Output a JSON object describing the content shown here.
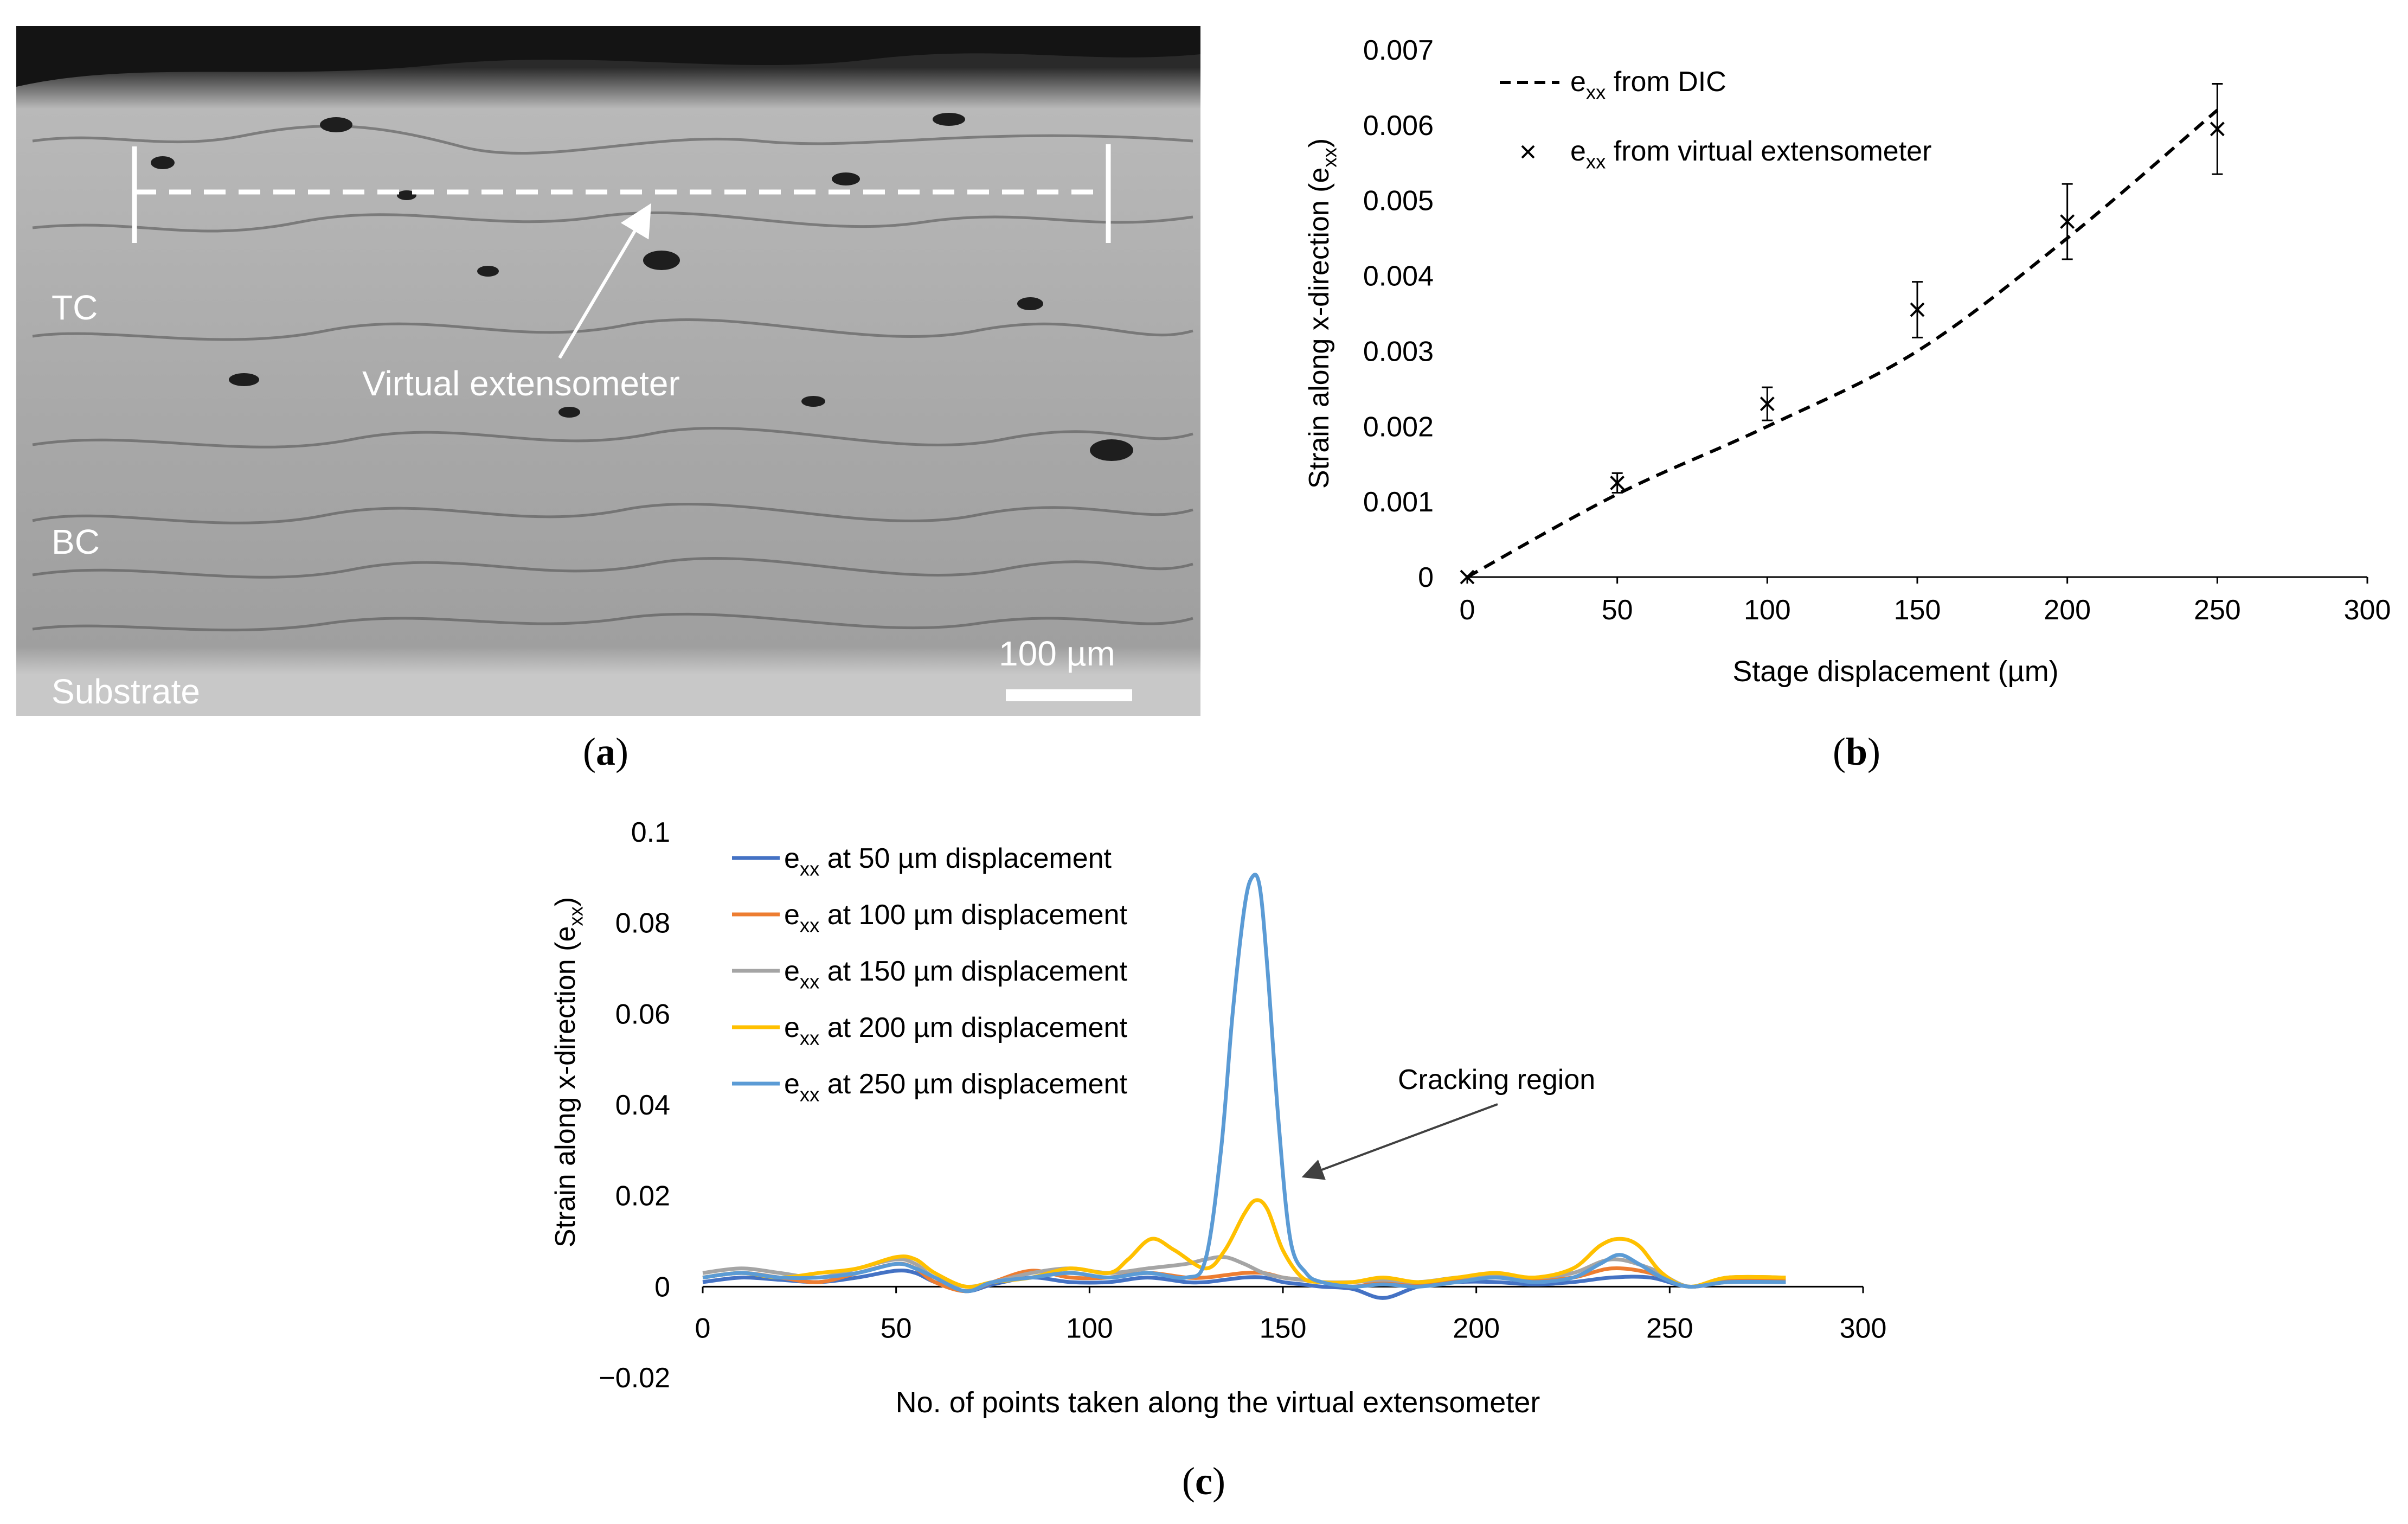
{
  "panels": {
    "a": {
      "label_open": "(",
      "label_letter": "a",
      "label_close": ")",
      "texts": {
        "tc": "TC",
        "bc": "BC",
        "substrate": "Substrate",
        "virtual": "Virtual extensometer",
        "scale": "100 µm"
      }
    },
    "b": {
      "label_open": "(",
      "label_letter": "b",
      "label_close": ")"
    },
    "c": {
      "label_open": "(",
      "label_letter": "c",
      "label_close": ")"
    }
  },
  "chart_data": [
    {
      "id": "b",
      "type": "line",
      "ylabel_main": "Strain along x-direction (e",
      "ylabel_sub": "xx",
      "ylabel_end": ")",
      "xlabel": "Stage displacement (µm)",
      "xlim": [
        0,
        300
      ],
      "ylim": [
        0,
        0.007
      ],
      "xticks": [
        "0",
        "50",
        "100",
        "150",
        "200",
        "250",
        "300"
      ],
      "yticks": [
        "0",
        "0.001",
        "0.002",
        "0.003",
        "0.004",
        "0.005",
        "0.006",
        "0.007"
      ],
      "legend_position": "top-left",
      "series": [
        {
          "name": "exx from DIC",
          "legend_main": "e",
          "legend_sub": "xx",
          "legend_rest": " from DIC",
          "style": "dashed",
          "x": [
            0,
            50,
            100,
            150,
            200,
            250
          ],
          "y": [
            0,
            0.0011,
            0.002,
            0.003,
            0.0045,
            0.0062
          ]
        },
        {
          "name": "exx from virtual extensometer",
          "legend_main": "e",
          "legend_sub": "xx",
          "legend_rest": " from virtual extensometer",
          "style": "markers-x",
          "x": [
            0,
            50,
            100,
            150,
            200,
            250
          ],
          "y": [
            0,
            0.00125,
            0.0023,
            0.00355,
            0.00472,
            0.00595
          ],
          "err": [
            0,
            0.00013,
            0.00022,
            0.00037,
            0.0005,
            0.0006
          ]
        }
      ]
    },
    {
      "id": "c",
      "type": "line",
      "ylabel_main": "Strain along x-direction (e",
      "ylabel_sub": "xx",
      "ylabel_end": ")",
      "xlabel": "No. of points taken along the virtual extensometer",
      "xlim": [
        0,
        300
      ],
      "ylim": [
        -0.02,
        0.1
      ],
      "xticks": [
        "0",
        "50",
        "100",
        "150",
        "200",
        "250",
        "300"
      ],
      "yticks": [
        "−0.02",
        "0",
        "0.02",
        "0.04",
        "0.06",
        "0.08",
        "0.1"
      ],
      "legend_position": "top-left",
      "annotation": "Cracking  region",
      "series": [
        {
          "name": "exx at 50 µm displacement",
          "legend_main": "e",
          "legend_sub": "xx",
          "legend_rest": " at 50 µm displacement",
          "color": "#4472C4",
          "x": [
            0,
            10,
            20,
            30,
            40,
            50,
            55,
            60,
            68,
            75,
            85,
            95,
            105,
            115,
            125,
            130,
            135,
            140,
            145,
            150,
            155,
            160,
            168,
            176,
            185,
            195,
            205,
            215,
            225,
            235,
            245,
            255,
            265,
            280
          ],
          "y": [
            0.001,
            0.002,
            0.0015,
            0.001,
            0.002,
            0.0035,
            0.003,
            0.001,
            -0.001,
            0.0005,
            0.002,
            0.001,
            0.001,
            0.002,
            0.001,
            0.001,
            0.0015,
            0.002,
            0.002,
            0.001,
            0.0005,
            0,
            -0.0005,
            -0.0025,
            0,
            0.001,
            0.001,
            0.0005,
            0.001,
            0.002,
            0.002,
            0,
            0.001,
            0.001
          ]
        },
        {
          "name": "exx at 100 µm displacement",
          "legend_main": "e",
          "legend_sub": "xx",
          "legend_rest": " at 100 µm displacement",
          "color": "#ED7D31",
          "x": [
            0,
            10,
            20,
            30,
            40,
            50,
            55,
            60,
            68,
            75,
            85,
            95,
            105,
            115,
            125,
            130,
            135,
            140,
            145,
            150,
            155,
            160,
            168,
            176,
            185,
            195,
            205,
            215,
            225,
            235,
            245,
            255,
            265,
            280
          ],
          "y": [
            0.002,
            0.003,
            0.002,
            0.001,
            0.003,
            0.005,
            0.004,
            0.001,
            -0.001,
            0.001,
            0.0035,
            0.002,
            0.002,
            0.003,
            0.002,
            0.002,
            0.0025,
            0.003,
            0.003,
            0.002,
            0.0015,
            0.001,
            0,
            0.001,
            0.0005,
            0.0015,
            0.002,
            0.0015,
            0.002,
            0.004,
            0.003,
            0,
            0.0015,
            0.0015
          ]
        },
        {
          "name": "exx at 150 µm displacement",
          "legend_main": "e",
          "legend_sub": "xx",
          "legend_rest": " at 150 µm displacement",
          "color": "#A5A5A5",
          "x": [
            0,
            10,
            20,
            30,
            40,
            50,
            55,
            60,
            68,
            75,
            85,
            95,
            105,
            115,
            125,
            130,
            135,
            140,
            145,
            150,
            155,
            160,
            168,
            176,
            185,
            195,
            205,
            215,
            225,
            235,
            245,
            255,
            265,
            280
          ],
          "y": [
            0.003,
            0.004,
            0.003,
            0.002,
            0.004,
            0.006,
            0.005,
            0.002,
            0,
            0.001,
            0.003,
            0.004,
            0.003,
            0.004,
            0.005,
            0.006,
            0.0065,
            0.005,
            0.003,
            0.002,
            0.0015,
            0.001,
            0.001,
            0.0015,
            0.001,
            0.002,
            0.0025,
            0.002,
            0.003,
            0.006,
            0.004,
            0,
            0.002,
            0.002
          ]
        },
        {
          "name": "exx at 200 µm displacement",
          "legend_main": "e",
          "legend_sub": "xx",
          "legend_rest": " at 200 µm displacement",
          "color": "#FFC000",
          "x": [
            0,
            10,
            20,
            30,
            40,
            50,
            55,
            60,
            68,
            75,
            85,
            95,
            105,
            110,
            116,
            122,
            130,
            135,
            140,
            143,
            146,
            150,
            155,
            160,
            168,
            176,
            185,
            195,
            205,
            215,
            225,
            232,
            237,
            242,
            248,
            255,
            265,
            280
          ],
          "y": [
            0.002,
            0.003,
            0.002,
            0.003,
            0.004,
            0.0065,
            0.006,
            0.003,
            0,
            0.001,
            0.002,
            0.004,
            0.003,
            0.006,
            0.0105,
            0.008,
            0.004,
            0.008,
            0.016,
            0.019,
            0.017,
            0.008,
            0.002,
            0.001,
            0.001,
            0.002,
            0.001,
            0.002,
            0.003,
            0.002,
            0.004,
            0.009,
            0.0105,
            0.009,
            0.003,
            0,
            0.002,
            0.002
          ]
        },
        {
          "name": "exx at 250 µm displacement",
          "legend_main": "e",
          "legend_sub": "xx",
          "legend_rest": " at 250 µm displacement",
          "color": "#5B9BD5",
          "x": [
            0,
            10,
            20,
            30,
            40,
            50,
            55,
            60,
            68,
            75,
            85,
            95,
            105,
            115,
            125,
            130,
            134,
            137,
            140,
            142,
            144,
            146,
            149,
            152,
            156,
            160,
            168,
            176,
            185,
            195,
            205,
            215,
            225,
            232,
            237,
            242,
            248,
            255,
            265,
            280
          ],
          "y": [
            0.002,
            0.003,
            0.002,
            0.002,
            0.003,
            0.005,
            0.004,
            0.002,
            -0.001,
            0.001,
            0.002,
            0.003,
            0.002,
            0.003,
            0.002,
            0.006,
            0.03,
            0.06,
            0.083,
            0.09,
            0.088,
            0.07,
            0.035,
            0.01,
            0.003,
            0.001,
            0,
            0.0005,
            0,
            0.001,
            0.002,
            0.001,
            0.002,
            0.005,
            0.007,
            0.005,
            0.002,
            0,
            0.001,
            0.001
          ]
        }
      ]
    }
  ],
  "colors": {
    "axis": "#000000",
    "text": "#000000",
    "arrow": "#404040"
  }
}
